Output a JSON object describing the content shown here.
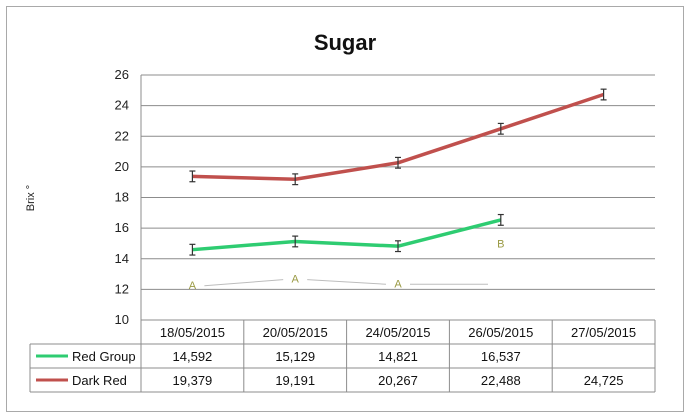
{
  "chart_data": {
    "type": "line",
    "title": "Sugar",
    "ylabel": "Brix °",
    "xlabel": "",
    "ylim": [
      10,
      26
    ],
    "yticks": [
      10,
      12,
      14,
      16,
      18,
      20,
      22,
      24,
      26
    ],
    "grid": true,
    "legend": "data-table",
    "categories": [
      "18/05/2015",
      "20/05/2015",
      "24/05/2015",
      "26/05/2015",
      "27/05/2015"
    ],
    "series": [
      {
        "name": "Red Group",
        "color": "#2ecc71",
        "values": [
          14.592,
          15.129,
          14.821,
          16.537,
          null
        ],
        "table_labels": [
          "14,592",
          "15,129",
          "14,821",
          "16,537",
          ""
        ],
        "error": [
          0.35,
          0.35,
          0.35,
          0.35,
          null
        ]
      },
      {
        "name": "Dark Red",
        "color": "#c0504d",
        "values": [
          19.379,
          19.191,
          20.267,
          22.488,
          24.725
        ],
        "table_labels": [
          "19,379",
          "19,191",
          "20,267",
          "22,488",
          "24,725"
        ],
        "error": [
          0.35,
          0.35,
          0.35,
          0.35,
          0.35
        ]
      }
    ],
    "annotations": [
      {
        "text": "A",
        "category": 0,
        "y": 12.3
      },
      {
        "text": "A",
        "category": 1,
        "y": 12.7
      },
      {
        "text": "A",
        "category": 2,
        "y": 12.4
      },
      {
        "text": "B",
        "category": 3,
        "y": 15.0
      }
    ]
  }
}
